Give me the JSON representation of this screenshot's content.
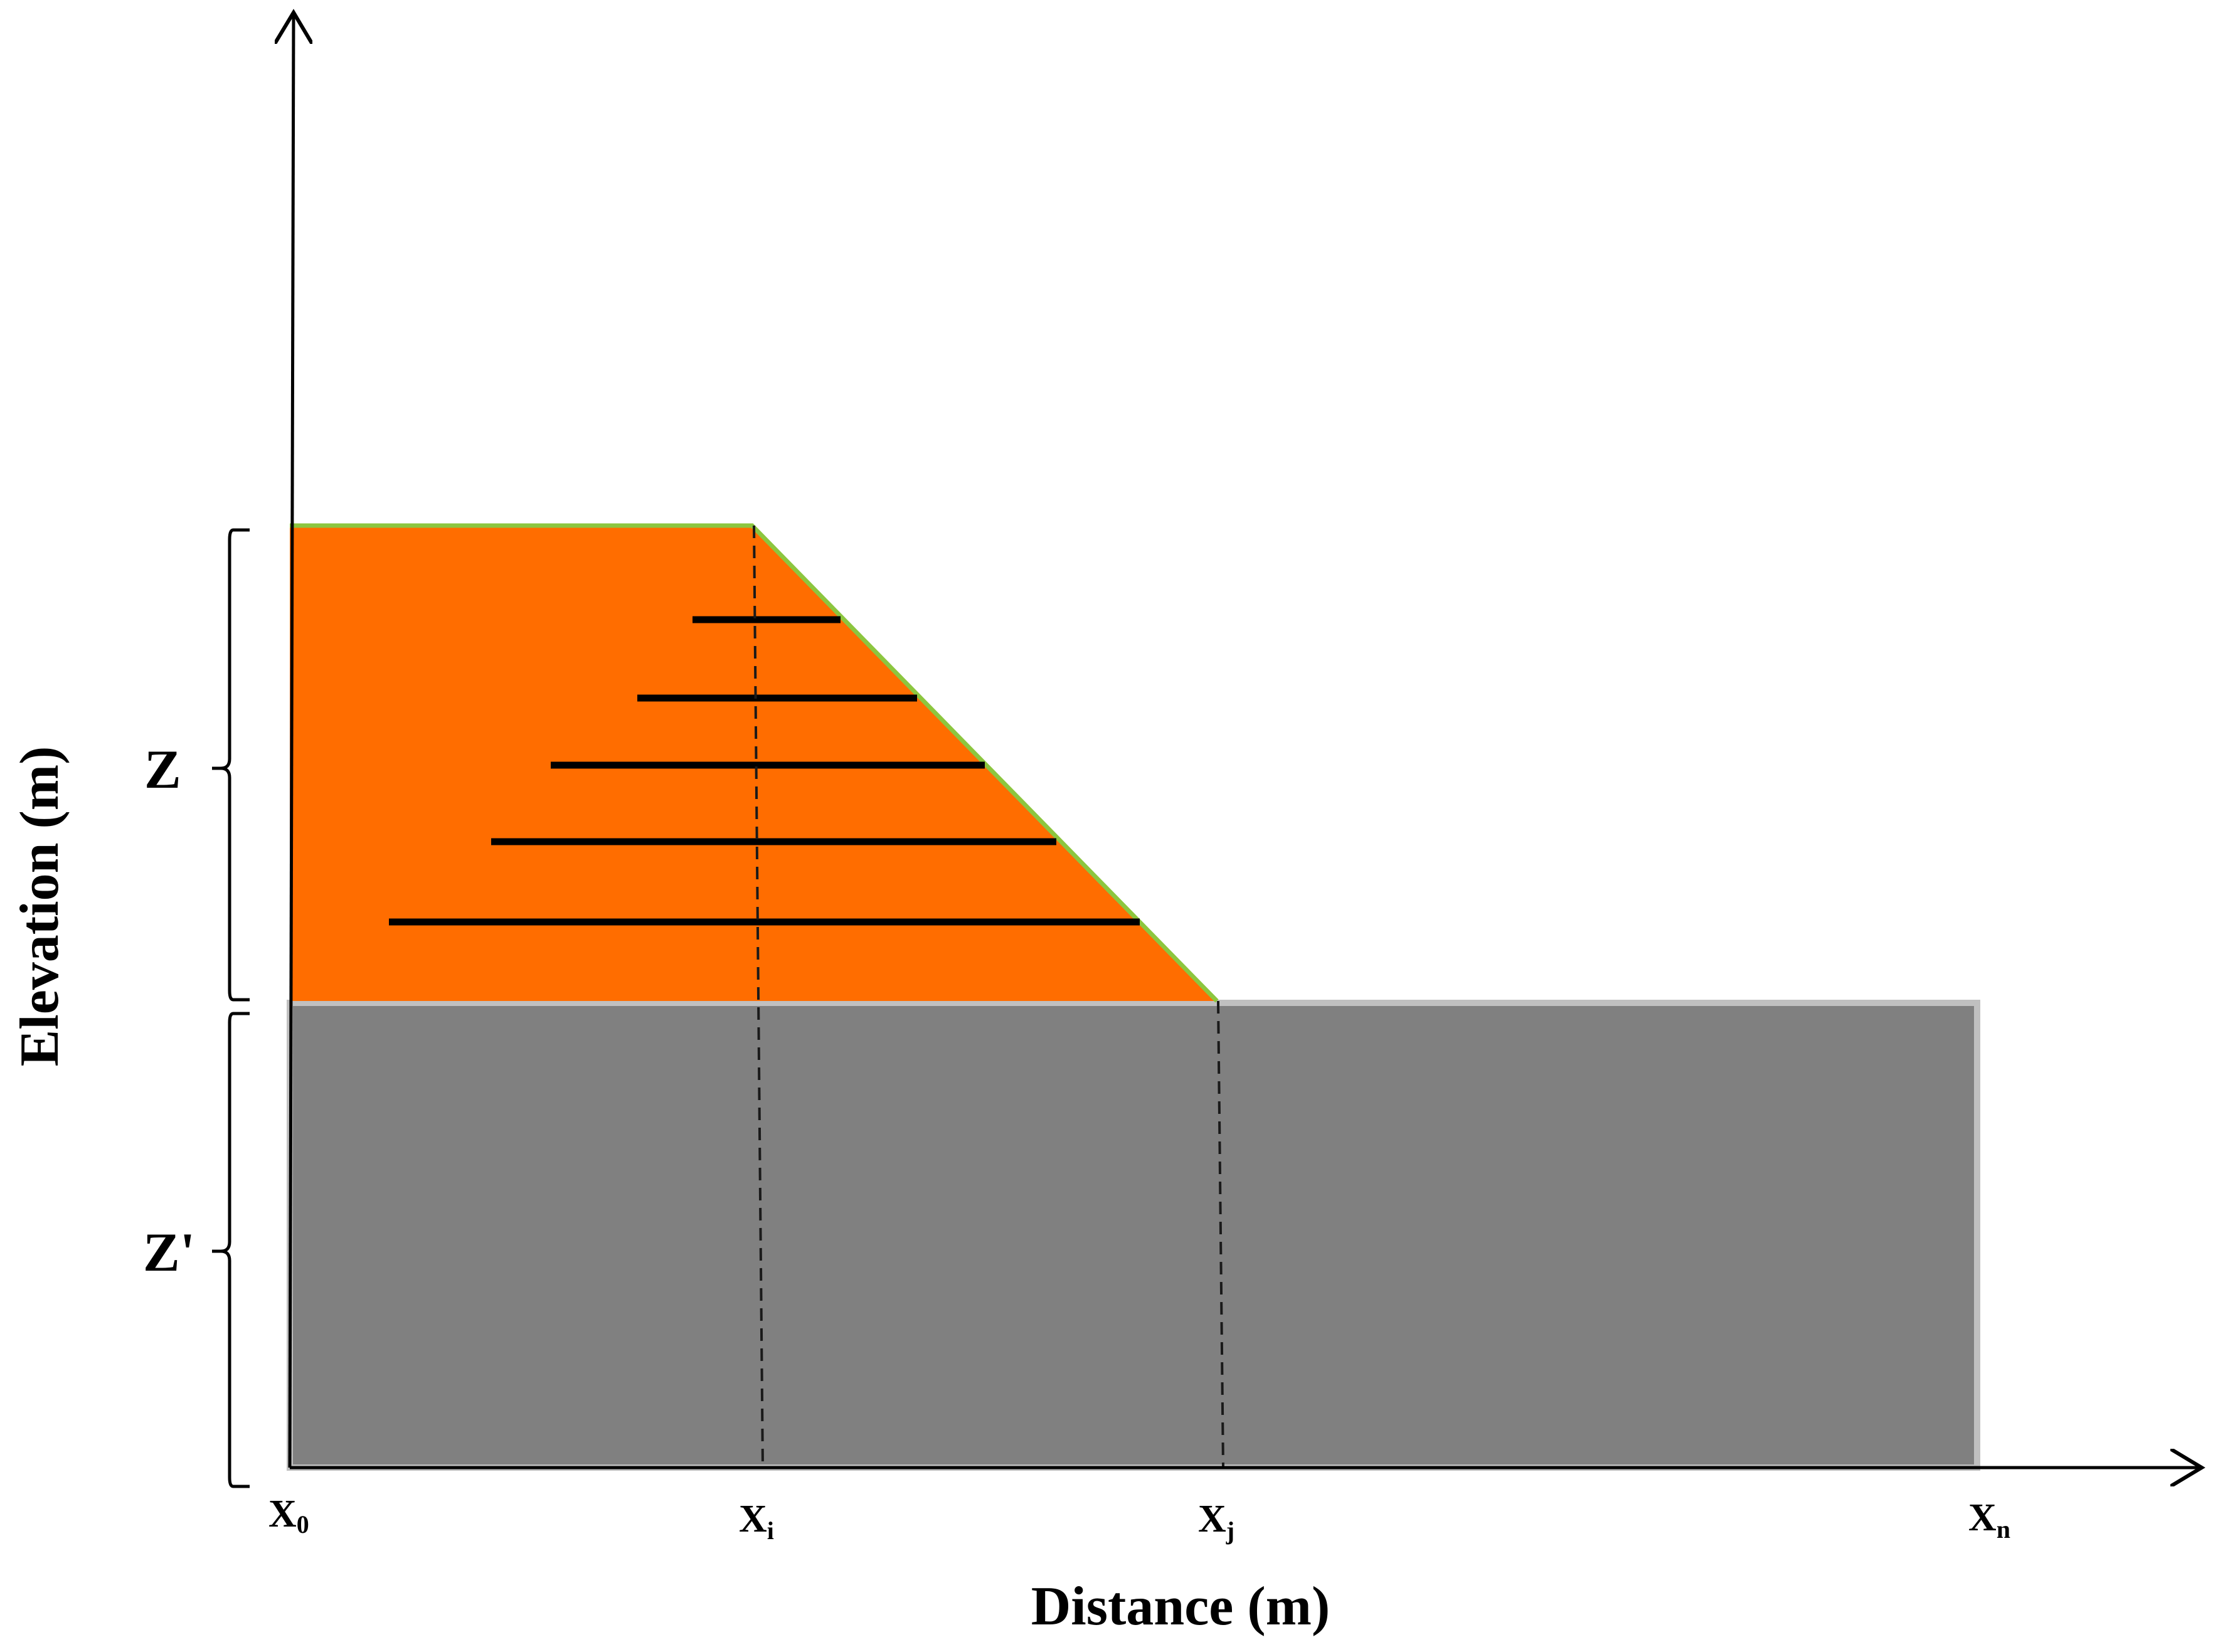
{
  "diagram": {
    "x_axis_title": "Distance (m)",
    "y_axis_title": "Elevation (m)",
    "upper_layer_label": "Z",
    "lower_layer_label": "Z'",
    "x_markers": [
      {
        "base": "X",
        "sub": "0"
      },
      {
        "base": "X",
        "sub": "i"
      },
      {
        "base": "X",
        "sub": "j"
      },
      {
        "base": "X",
        "sub": "n"
      }
    ],
    "colors": {
      "upper_layer_fill": "#FF6D00",
      "slope_edge": "#8CC63F",
      "lower_layer_fill": "#808080",
      "lower_layer_edge": "#C0C0C0",
      "axis": "#000000",
      "hatch_lines": "#000000"
    },
    "hatch_line_count": 5
  }
}
